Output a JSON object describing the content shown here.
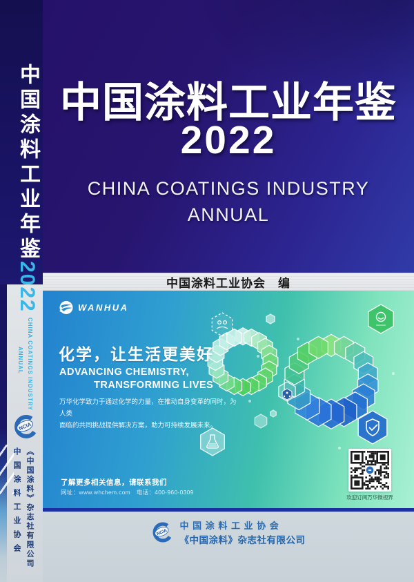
{
  "spine": {
    "title": "中国涂料工业年鉴",
    "year": "2022",
    "subtitle_en_line1": "CHINA COATINGS INDUSTRY",
    "subtitle_en_line2": "ANNUAL",
    "logo_text": "NCIA",
    "publisher_col_left": "中国涂料工业协会",
    "publisher_col_right": "《中国涂料》杂志社有限公司"
  },
  "cover": {
    "title": "中国涂料工业年鉴",
    "year": "2022",
    "subtitle_line1": "CHINA COATINGS INDUSTRY",
    "subtitle_line2": "ANNUAL",
    "editor_line": "中国涂料工业协会　编"
  },
  "ad": {
    "brand": "WANHUA",
    "slogan_cn": "化学，让生活更美好",
    "slogan_en_line1": "ADVANCING CHEMISTRY,",
    "slogan_en_line2": "TRANSFORMING LIVES",
    "body_line1": "万华化学致力于通过化学的力量，在推动自身变革的同时，为人类",
    "body_line2": "面临的共同挑战提供解决方案，助力可持续发展未来。",
    "contact_title": "了解更多相关信息，请联系我们",
    "contact_info": "网址：www.whchem.com　电话：400-960-0309",
    "qr_caption": "欢迎订阅万华微视界"
  },
  "footer": {
    "logo_text": "NCIA",
    "line1": "中 国 涂 料 工 业 协 会",
    "line2": "《中国涂料》杂志社有限公司"
  },
  "colors": {
    "cover_bg_top": "#251169",
    "cover_bg_bottom": "#303ba8",
    "spine_bg": "#171160",
    "year_cyan": "#38b7e8",
    "band_bg": "#e9ebed",
    "ad_blue": "#2382cf",
    "ad_teal": "#3fc0ad",
    "ad_mint": "#a9f0d4",
    "hex_green": "#4ecf5a",
    "hex_blue": "#1d5dc8",
    "line_navy": "#1c2fa0",
    "footer_bg": "#cbd5da",
    "footer_text": "#2a6db4"
  }
}
